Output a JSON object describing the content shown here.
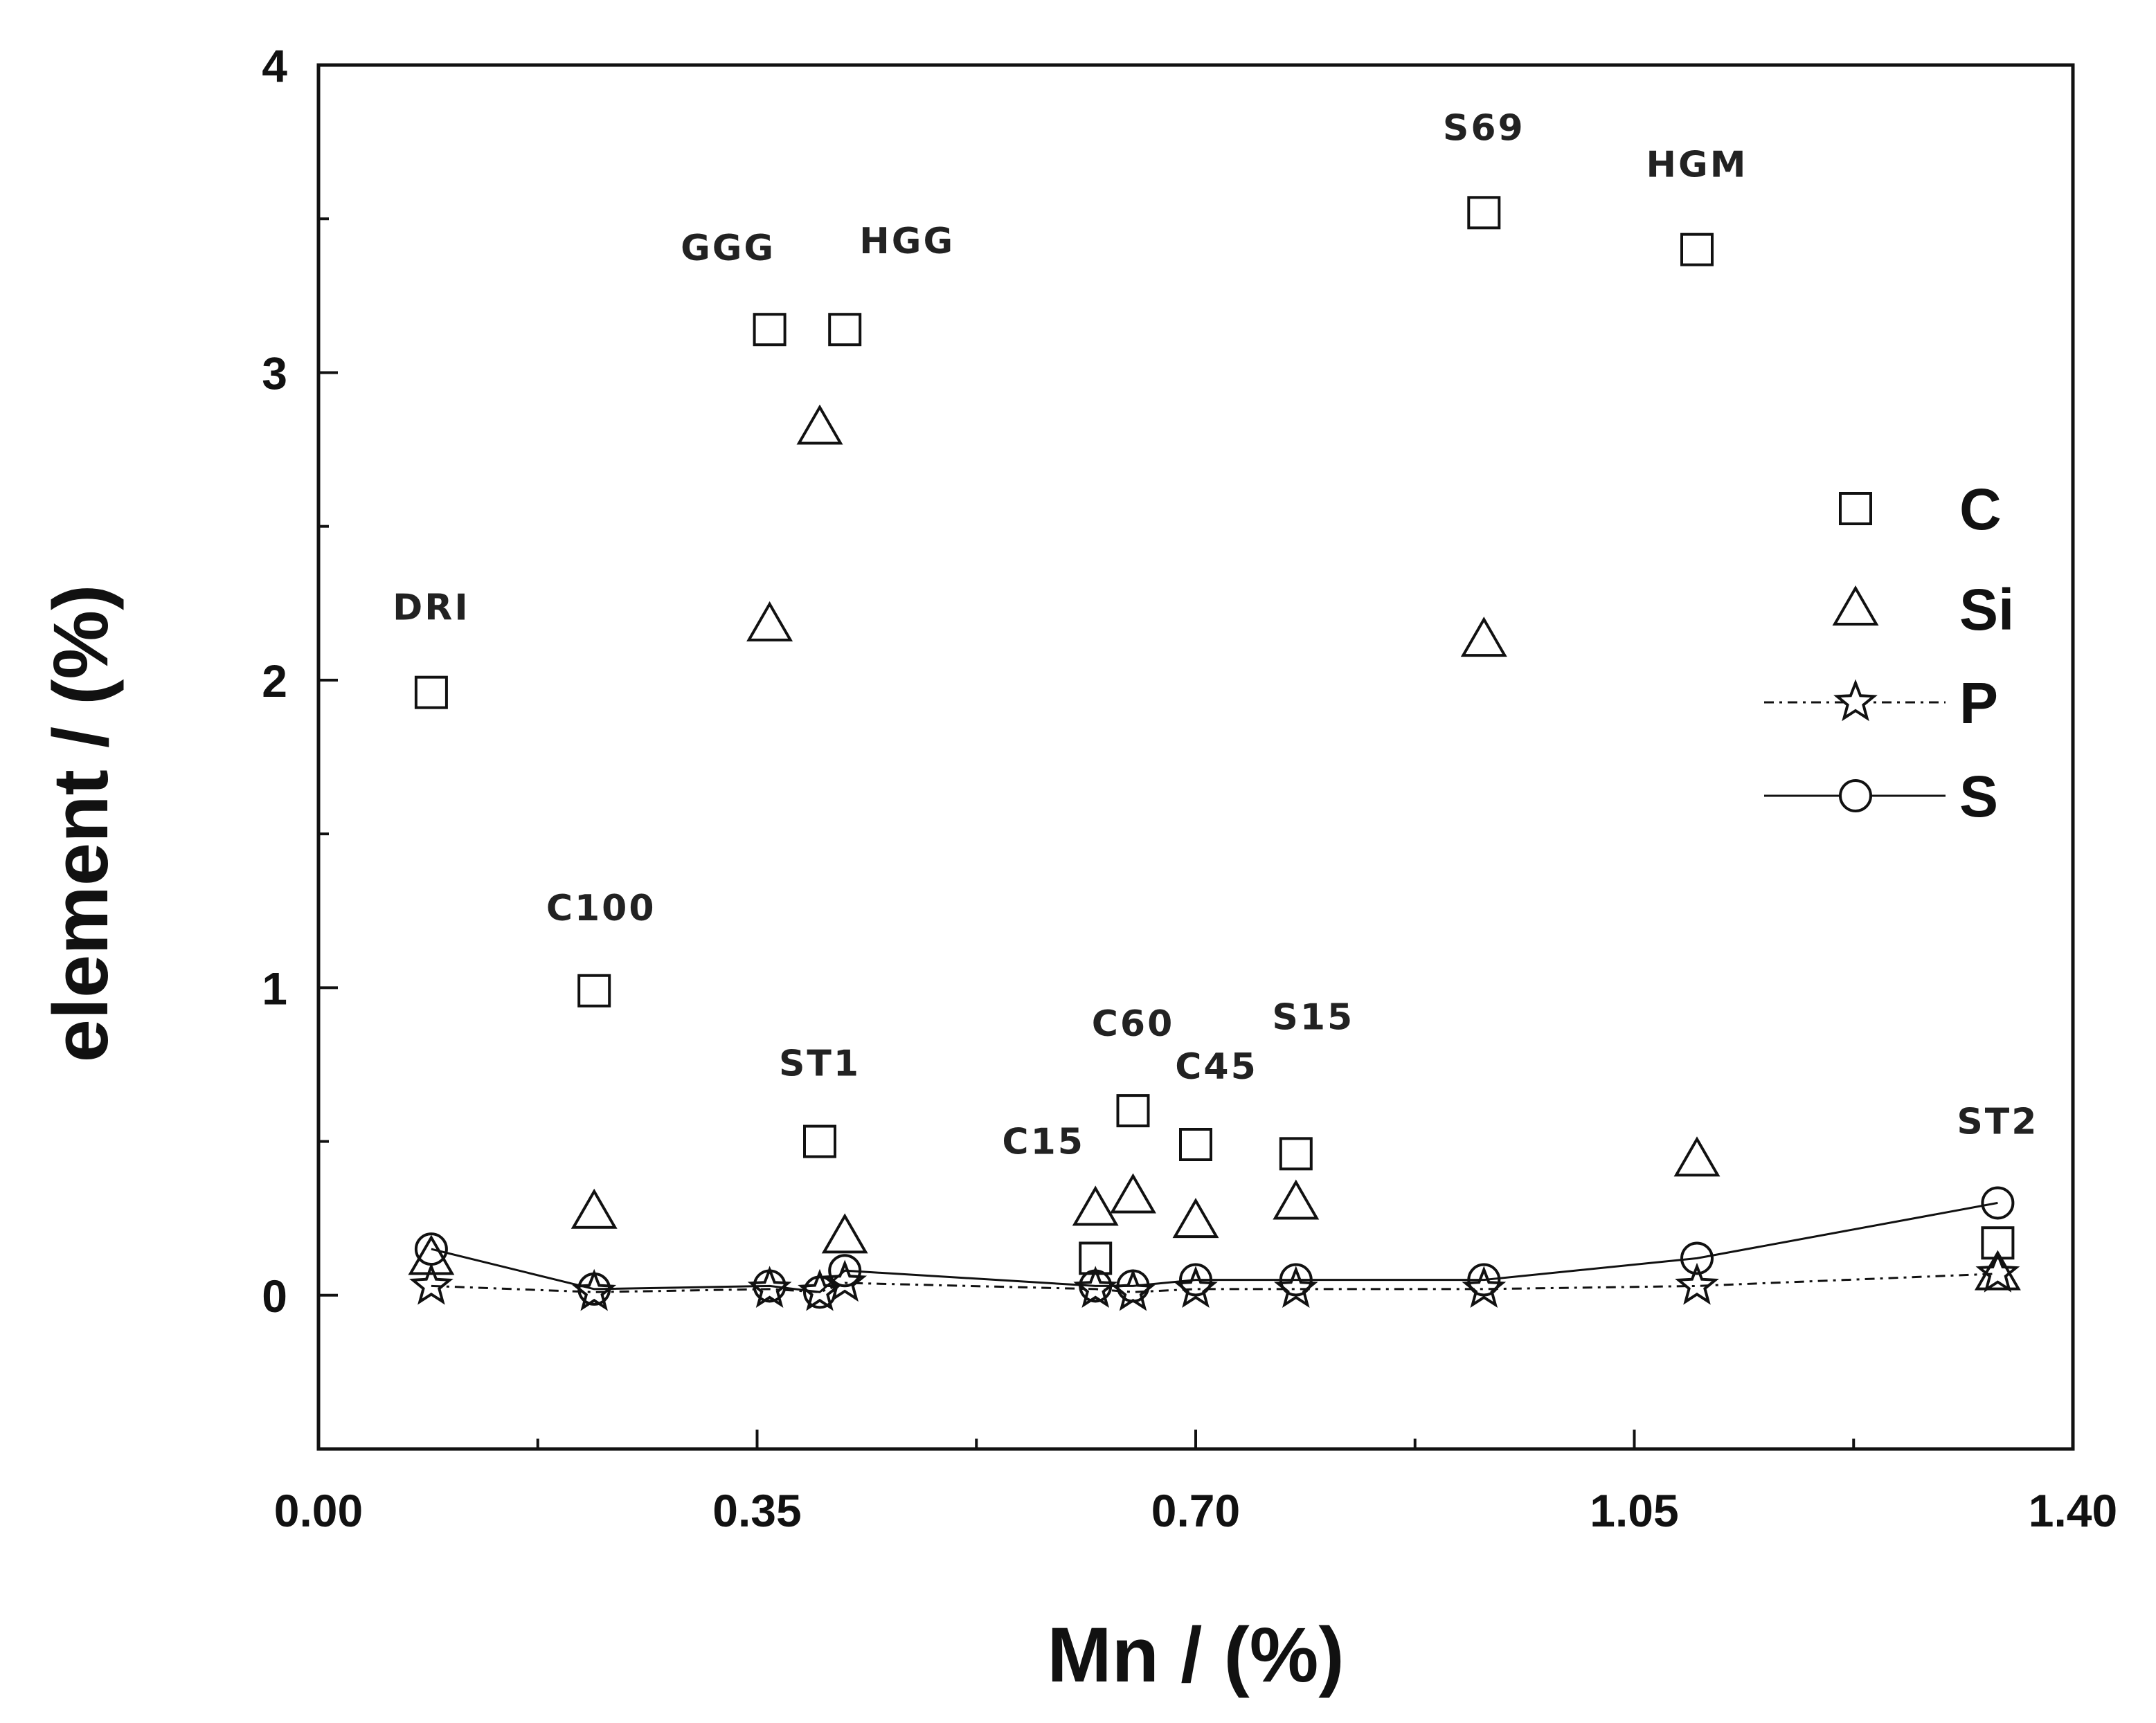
{
  "chart_data": {
    "type": "scatter",
    "title": "",
    "xlabel": "Mn / (%)",
    "ylabel": "element / (%)",
    "xlim": [
      0.0,
      1.4
    ],
    "ylim": [
      -0.5,
      4.0
    ],
    "x_ticks": [
      "0.00",
      "0.35",
      "0.70",
      "1.05",
      "1.40"
    ],
    "y_ticks": [
      "0",
      "1",
      "2",
      "3",
      "4"
    ],
    "legend_position": "right",
    "samples": [
      "DRI",
      "C100",
      "GGG",
      "ST1",
      "HGG",
      "C15",
      "C60",
      "C45",
      "S15",
      "S69",
      "HGM",
      "ST2"
    ],
    "series": [
      {
        "name": "C",
        "marker": "square",
        "line": "none",
        "points": [
          {
            "x": 0.09,
            "y": 1.96
          },
          {
            "x": 0.22,
            "y": 0.99
          },
          {
            "x": 0.36,
            "y": 3.14
          },
          {
            "x": 0.4,
            "y": 0.5
          },
          {
            "x": 0.42,
            "y": 3.14
          },
          {
            "x": 0.62,
            "y": 0.12
          },
          {
            "x": 0.65,
            "y": 0.6
          },
          {
            "x": 0.7,
            "y": 0.49
          },
          {
            "x": 0.78,
            "y": 0.46
          },
          {
            "x": 0.93,
            "y": 3.52
          },
          {
            "x": 1.1,
            "y": 3.4
          },
          {
            "x": 1.34,
            "y": 0.17
          }
        ]
      },
      {
        "name": "Si",
        "marker": "triangle",
        "line": "none",
        "points": [
          {
            "x": 0.09,
            "y": 0.12
          },
          {
            "x": 0.22,
            "y": 0.27
          },
          {
            "x": 0.36,
            "y": 2.18
          },
          {
            "x": 0.4,
            "y": 2.82
          },
          {
            "x": 0.42,
            "y": 0.19
          },
          {
            "x": 0.62,
            "y": 0.28
          },
          {
            "x": 0.65,
            "y": 0.32
          },
          {
            "x": 0.7,
            "y": 0.24
          },
          {
            "x": 0.78,
            "y": 0.3
          },
          {
            "x": 0.93,
            "y": 2.13
          },
          {
            "x": 1.1,
            "y": 0.44
          },
          {
            "x": 1.34,
            "y": 0.07
          }
        ]
      },
      {
        "name": "P",
        "marker": "star",
        "line": "dash-dot",
        "points": [
          {
            "x": 0.09,
            "y": 0.03
          },
          {
            "x": 0.22,
            "y": 0.01
          },
          {
            "x": 0.36,
            "y": 0.02
          },
          {
            "x": 0.4,
            "y": 0.01
          },
          {
            "x": 0.42,
            "y": 0.04
          },
          {
            "x": 0.62,
            "y": 0.02
          },
          {
            "x": 0.65,
            "y": 0.01
          },
          {
            "x": 0.7,
            "y": 0.02
          },
          {
            "x": 0.78,
            "y": 0.02
          },
          {
            "x": 0.93,
            "y": 0.02
          },
          {
            "x": 1.1,
            "y": 0.03
          },
          {
            "x": 1.34,
            "y": 0.07
          }
        ]
      },
      {
        "name": "S",
        "marker": "circle",
        "line": "solid",
        "points": [
          {
            "x": 0.09,
            "y": 0.15
          },
          {
            "x": 0.22,
            "y": 0.02
          },
          {
            "x": 0.36,
            "y": 0.03
          },
          {
            "x": 0.4,
            "y": 0.01
          },
          {
            "x": 0.42,
            "y": 0.08
          },
          {
            "x": 0.62,
            "y": 0.03
          },
          {
            "x": 0.65,
            "y": 0.03
          },
          {
            "x": 0.7,
            "y": 0.05
          },
          {
            "x": 0.78,
            "y": 0.05
          },
          {
            "x": 0.93,
            "y": 0.05
          },
          {
            "x": 1.1,
            "y": 0.12
          },
          {
            "x": 1.34,
            "y": 0.3
          }
        ]
      }
    ]
  }
}
